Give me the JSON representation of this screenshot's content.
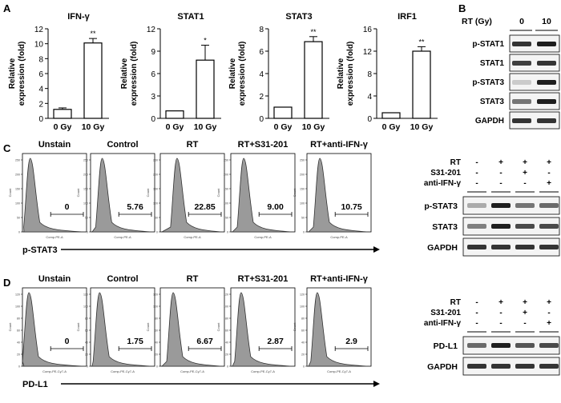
{
  "panel_labels": {
    "a": "A",
    "b": "B",
    "c": "C",
    "d": "D"
  },
  "chart_data": [
    {
      "type": "bar",
      "title": "IFN-γ",
      "categories": [
        "0 Gy",
        "10 Gy"
      ],
      "values": [
        1.2,
        10.1
      ],
      "errors": [
        0.2,
        0.6
      ],
      "ylim": [
        0,
        12
      ],
      "yticks": [
        "0",
        "2",
        "4",
        "6",
        "8",
        "10",
        "12"
      ],
      "ylabel": "Relative expression (fold)",
      "ylabel_lines": [
        "Relative",
        "expression (fold)"
      ],
      "significance": [
        "",
        "**"
      ]
    },
    {
      "type": "bar",
      "title": "STAT1",
      "categories": [
        "0 Gy",
        "10 Gy"
      ],
      "values": [
        1.0,
        7.8
      ],
      "errors": [
        0,
        2.0
      ],
      "ylim": [
        0,
        12
      ],
      "yticks": [
        "0",
        "3",
        "6",
        "9",
        "12"
      ],
      "ylabel": "Relative expression (fold)",
      "ylabel_lines": [
        "Relative",
        "expression (fold)"
      ],
      "significance": [
        "",
        "*"
      ]
    },
    {
      "type": "bar",
      "title": "STAT3",
      "categories": [
        "0 Gy",
        "10 Gy"
      ],
      "values": [
        1.0,
        6.85
      ],
      "errors": [
        0,
        0.45
      ],
      "ylim": [
        0,
        8
      ],
      "yticks": [
        "0",
        "2",
        "4",
        "6",
        "8"
      ],
      "ylabel": "Relative expression (fold)",
      "ylabel_lines": [
        "Relative",
        "expression (fold)"
      ],
      "significance": [
        "",
        "**"
      ]
    },
    {
      "type": "bar",
      "title": "IRF1",
      "categories": [
        "0 Gy",
        "10 Gy"
      ],
      "values": [
        1.0,
        12.0
      ],
      "errors": [
        0,
        0.8
      ],
      "ylim": [
        0,
        16
      ],
      "yticks": [
        "0",
        "4",
        "8",
        "12",
        "16"
      ],
      "ylabel": "Relative expression (fold)",
      "ylabel_lines": [
        "Relative",
        "expression (fold)"
      ],
      "significance": [
        "",
        "**"
      ]
    }
  ],
  "western_b": {
    "header": "RT (Gy)",
    "conditions": [
      "0",
      "10"
    ],
    "rows": [
      {
        "label": "p-STAT1",
        "intensity": [
          0.85,
          0.95
        ]
      },
      {
        "label": "STAT1",
        "intensity": [
          0.8,
          0.85
        ]
      },
      {
        "label": "p-STAT3",
        "intensity": [
          0.15,
          0.95
        ]
      },
      {
        "label": "STAT3",
        "intensity": [
          0.55,
          0.95
        ]
      },
      {
        "label": "GAPDH",
        "intensity": [
          0.85,
          0.85
        ]
      }
    ]
  },
  "flow_c": {
    "titles": [
      "Unstain",
      "Control",
      "RT",
      "RT+S31-201",
      "RT+anti-IFN-γ"
    ],
    "values": [
      "0",
      "5.76",
      "22.85",
      "9.00",
      "10.75"
    ],
    "axis_label": "p-STAT3",
    "x_axis_small": "Comp-PE-A",
    "y_axis_small": "Count",
    "y_ticks": [
      "0",
      "50",
      "100",
      "150",
      "200",
      "250"
    ]
  },
  "western_c": {
    "row_labels": [
      "RT",
      "S31-201",
      "anti-IFN-γ"
    ],
    "signs": [
      [
        "-",
        "+",
        "+",
        "+"
      ],
      [
        "-",
        "-",
        "+",
        "-"
      ],
      [
        "-",
        "-",
        "-",
        "+"
      ]
    ],
    "rows": [
      {
        "label": "p-STAT3",
        "intensity": [
          0.3,
          0.95,
          0.55,
          0.6
        ]
      },
      {
        "label": "STAT3",
        "intensity": [
          0.5,
          0.95,
          0.75,
          0.75
        ]
      },
      {
        "label": "GAPDH",
        "intensity": [
          0.85,
          0.85,
          0.85,
          0.85
        ]
      }
    ]
  },
  "flow_d": {
    "titles": [
      "Unstain",
      "Control",
      "RT",
      "RT+S31-201",
      "RT+anti-IFN-γ"
    ],
    "values": [
      "0",
      "1.75",
      "6.67",
      "2.87",
      "2.9"
    ],
    "axis_label": "PD-L1",
    "x_axis_small": "Comp-PE-Cy7-A",
    "y_axis_small": "Count",
    "y_ticks": [
      "0",
      "20",
      "40",
      "60",
      "80",
      "100",
      "120"
    ]
  },
  "western_d": {
    "row_labels": [
      "RT",
      "S31-201",
      "anti-IFN-γ"
    ],
    "signs": [
      [
        "-",
        "+",
        "+",
        "+"
      ],
      [
        "-",
        "-",
        "+",
        "-"
      ],
      [
        "-",
        "-",
        "-",
        "+"
      ]
    ],
    "rows": [
      {
        "label": "PD-L1",
        "intensity": [
          0.6,
          0.95,
          0.7,
          0.75
        ]
      },
      {
        "label": "GAPDH",
        "intensity": [
          0.85,
          0.85,
          0.85,
          0.85
        ]
      }
    ]
  }
}
